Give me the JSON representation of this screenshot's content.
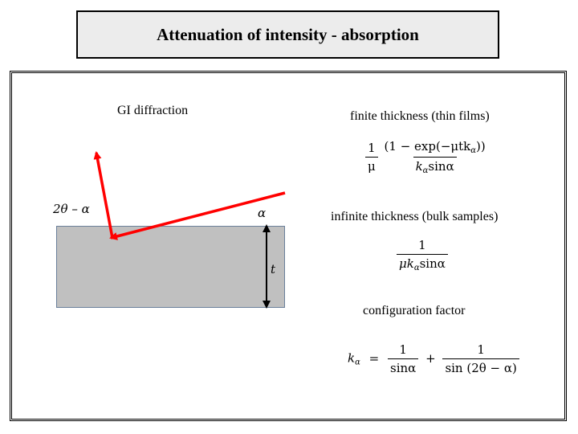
{
  "title": "Attenuation of intensity - absorption",
  "labels": {
    "gi_diffraction": "GI diffraction",
    "exit_angle": "2θ – α",
    "incident_angle": "α",
    "thickness_symbol": "t",
    "finite_thickness": "finite thickness (thin films)",
    "infinite_thickness": "infinite thickness (bulk samples)",
    "configuration_factor": "configuration factor"
  },
  "formulas": {
    "finite": {
      "left_num": "1",
      "left_den": "μ",
      "right_num": "(1 − exp(−μtk",
      "right_num_sub": "α",
      "right_num_tail": "))",
      "right_den": "k",
      "right_den_sub": "α",
      "right_den_tail": "sinα"
    },
    "infinite": {
      "num": "1",
      "den": "μk",
      "den_sub": "α",
      "den_tail": "sinα"
    },
    "config": {
      "lhs": "k",
      "lhs_sub": "α",
      "eq": "=",
      "t1_num": "1",
      "t1_den": "sinα",
      "plus": "+",
      "t2_num": "1",
      "t2_den": "sin (2θ − α)"
    }
  },
  "colors": {
    "beam": "#ff0000",
    "sample_fill": "#c0c0c0",
    "title_bg": "#ececec"
  }
}
